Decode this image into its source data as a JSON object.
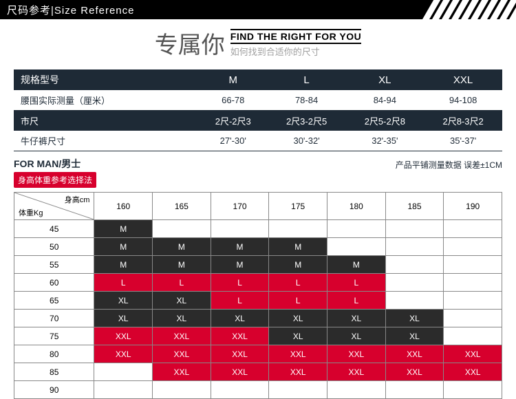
{
  "banner": {
    "cn": "尺码参考",
    "sep": "|",
    "en": "Size Reference"
  },
  "title": {
    "cn": "专属你",
    "en": "FIND THE RIGHT FOR YOU",
    "sub": "如何找到合适你的尺寸"
  },
  "sizeTable": {
    "header": [
      "规格型号",
      "M",
      "L",
      "XL",
      "XXL"
    ],
    "rows": [
      {
        "label": "腰围实际测量（厘米）",
        "cells": [
          "66-78",
          "78-84",
          "84-94",
          "94-108"
        ],
        "inv": false
      },
      {
        "label": "市尺",
        "cells": [
          "2尺-2尺3",
          "2尺3-2尺5",
          "2尺5-2尺8",
          "2尺8-3尺2"
        ],
        "inv": true
      },
      {
        "label": "牛仔裤尺寸",
        "cells": [
          "27'-30'",
          "30'-32'",
          "32'-35'",
          "35'-37'"
        ],
        "inv": false
      }
    ]
  },
  "meta": {
    "left": "FOR MAN/男士",
    "right": "产品平铺测量数据 误差±1CM"
  },
  "badge": "身高体重参考选择法",
  "grid": {
    "corner": {
      "top": "身高cm",
      "bottom": "体重Kg"
    },
    "heights": [
      "160",
      "165",
      "170",
      "175",
      "180",
      "185",
      "190"
    ],
    "weights": [
      "45",
      "50",
      "55",
      "60",
      "65",
      "70",
      "75",
      "80",
      "85",
      "90"
    ],
    "cells": [
      [
        {
          "t": "M",
          "c": "dark"
        },
        {
          "t": "",
          "c": ""
        },
        {
          "t": "",
          "c": ""
        },
        {
          "t": "",
          "c": ""
        },
        {
          "t": "",
          "c": ""
        },
        {
          "t": "",
          "c": ""
        },
        {
          "t": "",
          "c": ""
        }
      ],
      [
        {
          "t": "M",
          "c": "dark"
        },
        {
          "t": "M",
          "c": "dark"
        },
        {
          "t": "M",
          "c": "dark"
        },
        {
          "t": "M",
          "c": "dark"
        },
        {
          "t": "",
          "c": ""
        },
        {
          "t": "",
          "c": ""
        },
        {
          "t": "",
          "c": ""
        }
      ],
      [
        {
          "t": "M",
          "c": "dark"
        },
        {
          "t": "M",
          "c": "dark"
        },
        {
          "t": "M",
          "c": "dark"
        },
        {
          "t": "M",
          "c": "dark"
        },
        {
          "t": "M",
          "c": "dark"
        },
        {
          "t": "",
          "c": ""
        },
        {
          "t": "",
          "c": ""
        }
      ],
      [
        {
          "t": "L",
          "c": "red"
        },
        {
          "t": "L",
          "c": "red"
        },
        {
          "t": "L",
          "c": "red"
        },
        {
          "t": "L",
          "c": "red"
        },
        {
          "t": "L",
          "c": "red"
        },
        {
          "t": "",
          "c": ""
        },
        {
          "t": "",
          "c": ""
        }
      ],
      [
        {
          "t": "XL",
          "c": "dark"
        },
        {
          "t": "XL",
          "c": "dark"
        },
        {
          "t": "L",
          "c": "red"
        },
        {
          "t": "L",
          "c": "red"
        },
        {
          "t": "L",
          "c": "red"
        },
        {
          "t": "",
          "c": ""
        },
        {
          "t": "",
          "c": ""
        }
      ],
      [
        {
          "t": "XL",
          "c": "dark"
        },
        {
          "t": "XL",
          "c": "dark"
        },
        {
          "t": "XL",
          "c": "dark"
        },
        {
          "t": "XL",
          "c": "dark"
        },
        {
          "t": "XL",
          "c": "dark"
        },
        {
          "t": "XL",
          "c": "dark"
        },
        {
          "t": "",
          "c": ""
        }
      ],
      [
        {
          "t": "XXL",
          "c": "red"
        },
        {
          "t": "XXL",
          "c": "red"
        },
        {
          "t": "XXL",
          "c": "red"
        },
        {
          "t": "XL",
          "c": "dark"
        },
        {
          "t": "XL",
          "c": "dark"
        },
        {
          "t": "XL",
          "c": "dark"
        },
        {
          "t": "",
          "c": ""
        }
      ],
      [
        {
          "t": "XXL",
          "c": "red"
        },
        {
          "t": "XXL",
          "c": "red"
        },
        {
          "t": "XXL",
          "c": "red"
        },
        {
          "t": "XXL",
          "c": "red"
        },
        {
          "t": "XXL",
          "c": "red"
        },
        {
          "t": "XXL",
          "c": "red"
        },
        {
          "t": "XXL",
          "c": "red"
        }
      ],
      [
        {
          "t": "",
          "c": ""
        },
        {
          "t": "XXL",
          "c": "red"
        },
        {
          "t": "XXL",
          "c": "red"
        },
        {
          "t": "XXL",
          "c": "red"
        },
        {
          "t": "XXL",
          "c": "red"
        },
        {
          "t": "XXL",
          "c": "red"
        },
        {
          "t": "XXL",
          "c": "red"
        }
      ],
      [
        {
          "t": "",
          "c": ""
        },
        {
          "t": "",
          "c": ""
        },
        {
          "t": "",
          "c": ""
        },
        {
          "t": "",
          "c": ""
        },
        {
          "t": "",
          "c": ""
        },
        {
          "t": "",
          "c": ""
        },
        {
          "t": "",
          "c": ""
        }
      ]
    ]
  },
  "colors": {
    "bannerBg": "#000000",
    "bannerText": "#ffffff",
    "darkCell": "#2b2b2b",
    "redCell": "#d7002d",
    "navy": "#1e2a36",
    "gridBorder": "#888888"
  }
}
